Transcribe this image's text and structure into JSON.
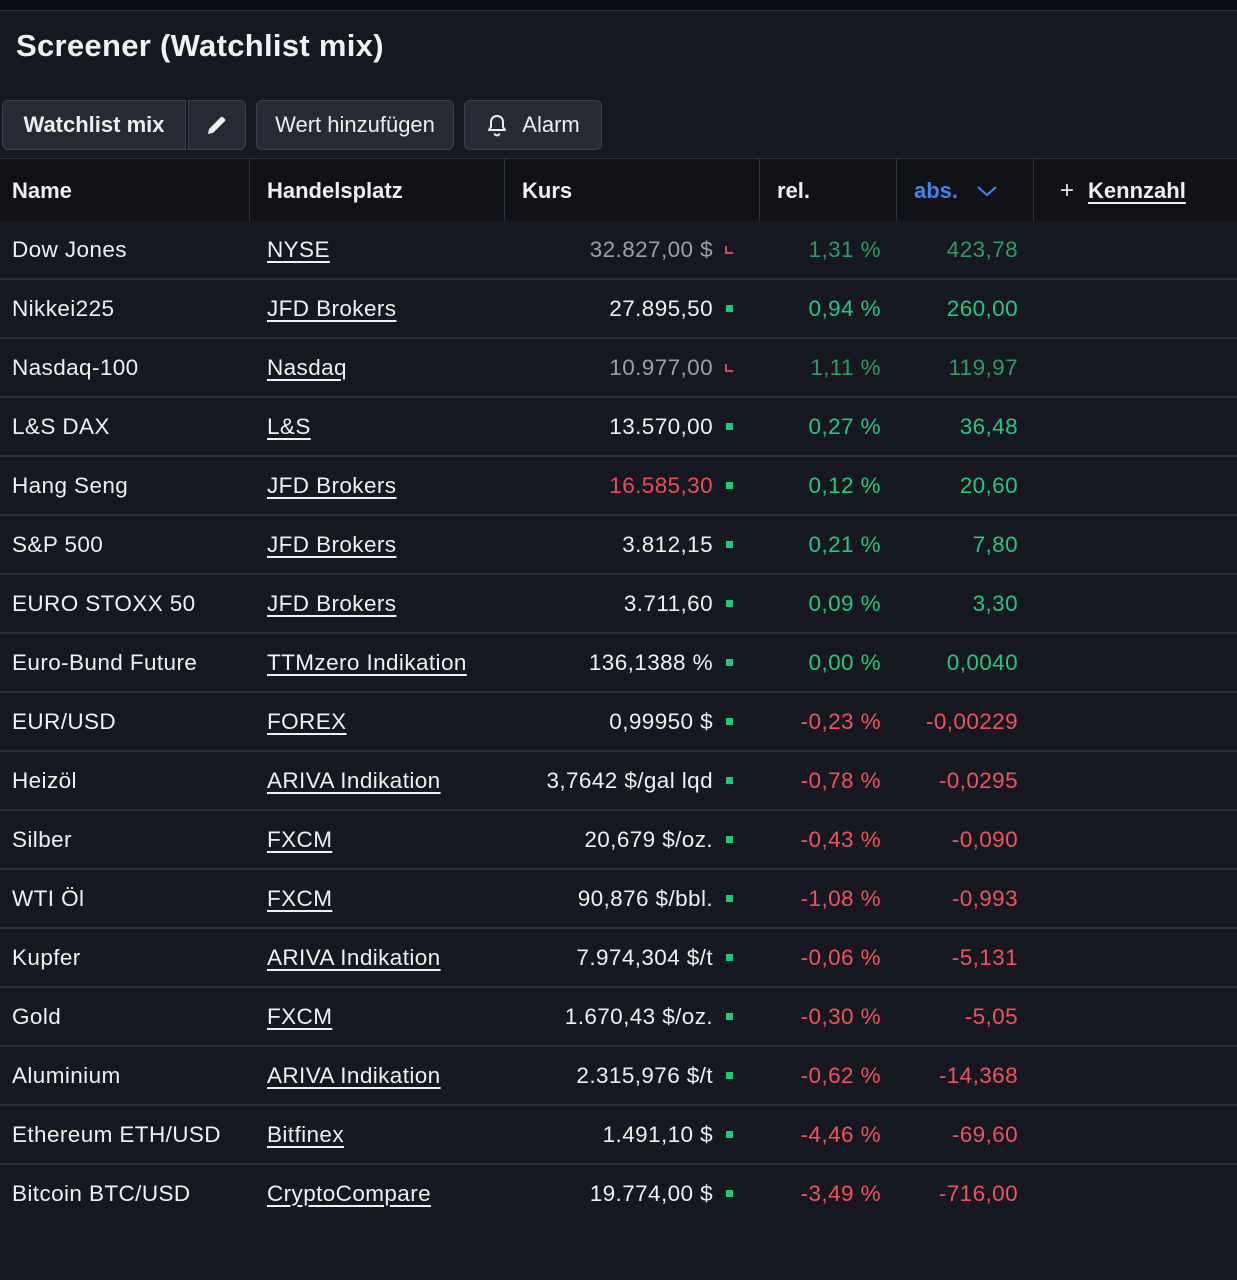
{
  "page": {
    "title": "Screener (Watchlist mix)"
  },
  "toolbar": {
    "watchlist_label": "Watchlist mix",
    "add_label": "Wert hinzufügen",
    "alarm_label": "Alarm"
  },
  "table": {
    "headers": {
      "name": "Name",
      "handelsplatz": "Handelsplatz",
      "kurs": "Kurs",
      "rel": "rel.",
      "abs": "abs.",
      "add_plus": "+",
      "kennzahl": "Kennzahl"
    },
    "rows": [
      {
        "name": "Dow Jones",
        "handelsplatz": "NYSE",
        "kurs": "32.827,00 $",
        "rel": "1,31 %",
        "abs": "423,78"
      },
      {
        "name": "Nikkei225",
        "handelsplatz": "JFD Brokers",
        "kurs": "27.895,50",
        "rel": "0,94 %",
        "abs": "260,00"
      },
      {
        "name": "Nasdaq-100",
        "handelsplatz": "Nasdaq",
        "kurs": "10.977,00",
        "rel": "1,11 %",
        "abs": "119,97"
      },
      {
        "name": "L&S DAX",
        "handelsplatz": "L&S",
        "kurs": "13.570,00",
        "rel": "0,27 %",
        "abs": "36,48"
      },
      {
        "name": "Hang Seng",
        "handelsplatz": "JFD Brokers",
        "kurs": "16.585,30",
        "rel": "0,12 %",
        "abs": "20,60"
      },
      {
        "name": "S&P 500",
        "handelsplatz": "JFD Brokers",
        "kurs": "3.812,15",
        "rel": "0,21 %",
        "abs": "7,80"
      },
      {
        "name": "EURO STOXX 50",
        "handelsplatz": "JFD Brokers",
        "kurs": "3.711,60",
        "rel": "0,09 %",
        "abs": "3,30"
      },
      {
        "name": "Euro-Bund Future",
        "handelsplatz": "TTMzero Indikation",
        "kurs": "136,1388 %",
        "rel": "0,00 %",
        "abs": "0,0040"
      },
      {
        "name": "EUR/USD",
        "handelsplatz": "FOREX",
        "kurs": "0,99950 $",
        "rel": "-0,23 %",
        "abs": "-0,00229"
      },
      {
        "name": "Heizöl",
        "handelsplatz": "ARIVA Indikation",
        "kurs": "3,7642 $/gal lqd",
        "rel": "-0,78 %",
        "abs": "-0,0295"
      },
      {
        "name": "Silber",
        "handelsplatz": "FXCM",
        "kurs": "20,679 $/oz.",
        "rel": "-0,43 %",
        "abs": "-0,090"
      },
      {
        "name": "WTI Öl",
        "handelsplatz": "FXCM",
        "kurs": "90,876 $/bbl.",
        "rel": "-1,08 %",
        "abs": "-0,993"
      },
      {
        "name": "Kupfer",
        "handelsplatz": "ARIVA Indikation",
        "kurs": "7.974,304 $/t",
        "rel": "-0,06 %",
        "abs": "-5,131"
      },
      {
        "name": "Gold",
        "handelsplatz": "FXCM",
        "kurs": "1.670,43 $/oz.",
        "rel": "-0,30 %",
        "abs": "-5,05"
      },
      {
        "name": "Aluminium",
        "handelsplatz": "ARIVA Indikation",
        "kurs": "2.315,976 $/t",
        "rel": "-0,62 %",
        "abs": "-14,368"
      },
      {
        "name": "Ethereum ETH/USD",
        "handelsplatz": "Bitfinex",
        "kurs": "1.491,10 $",
        "rel": "-4,46 %",
        "abs": "-69,60"
      },
      {
        "name": "Bitcoin BTC/USD",
        "handelsplatz": "CryptoCompare",
        "kurs": "19.774,00 $",
        "rel": "-3,49 %",
        "abs": "-716,00"
      }
    ]
  },
  "colors": {
    "background": "#151821",
    "accent_blue": "#3b86f0",
    "positive_green": "#23c77d",
    "negative_red": "#f0525d"
  }
}
